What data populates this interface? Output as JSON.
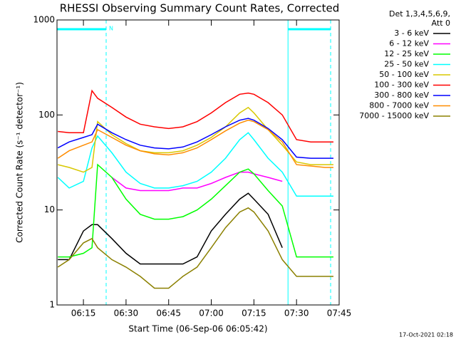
{
  "chart_data": {
    "type": "line",
    "title": "RHESSI Observing Summary Count Rates, Corrected",
    "x_label": "Start Time (06-Sep-06 06:05:42)",
    "y_label": "Corrected Count Rate (s⁻¹ detector⁻¹)",
    "legend_title": [
      "Det 1,3,4,5,6,9,",
      "Att 0"
    ],
    "legend": "right",
    "footer": "17-Oct-2021 02:18",
    "log_y": true,
    "xlim": [
      "06:05:42",
      "07:45"
    ],
    "xticks": [
      "06:15",
      "06:30",
      "06:45",
      "07:00",
      "07:15",
      "07:30",
      "07:45"
    ],
    "ylim": [
      1,
      1000
    ],
    "yticks": [
      1,
      10,
      100,
      1000
    ],
    "night_intervals": [
      {
        "start": "06:05:42",
        "end": "06:23"
      },
      {
        "start": "07:27",
        "end": "07:42"
      }
    ],
    "night_color": "#00ffff",
    "night_label": "N",
    "x": [
      "06:06",
      "06:10",
      "06:15",
      "06:18",
      "06:20",
      "06:25",
      "06:30",
      "06:35",
      "06:40",
      "06:45",
      "06:50",
      "06:55",
      "07:00",
      "07:05",
      "07:10",
      "07:13",
      "07:15",
      "07:20",
      "07:25",
      "07:30",
      "07:35",
      "07:40",
      "07:43"
    ],
    "series": [
      {
        "name": "3 - 6 keV",
        "color": "#000000",
        "values": [
          3,
          3,
          6,
          7,
          7,
          5,
          3.5,
          2.7,
          2.7,
          2.7,
          2.7,
          3.2,
          6,
          9,
          13,
          15,
          13,
          9,
          4,
          null,
          null,
          null,
          null
        ]
      },
      {
        "name": "6 - 12 keV",
        "color": "#ff00ff",
        "values": [
          null,
          null,
          null,
          null,
          null,
          22,
          17,
          16,
          16,
          16,
          17,
          17,
          19,
          22,
          25,
          25,
          24,
          22,
          20,
          null,
          null,
          null,
          null
        ]
      },
      {
        "name": "12 - 25 keV",
        "color": "#00ff00",
        "values": [
          3.2,
          3.2,
          3.5,
          4,
          30,
          22,
          13,
          9,
          8,
          8,
          8.5,
          10,
          13,
          18,
          25,
          27,
          24,
          16,
          11,
          3.2,
          3.2,
          3.2,
          3.2
        ]
      },
      {
        "name": "25 - 50 keV",
        "color": "#00ffff",
        "values": [
          22,
          17,
          20,
          45,
          60,
          40,
          25,
          19,
          17,
          17,
          18,
          20,
          25,
          35,
          55,
          65,
          55,
          35,
          25,
          14,
          14,
          14,
          14
        ]
      },
      {
        "name": "50 - 100 keV",
        "color": "#d8c800",
        "values": [
          30,
          28,
          25,
          28,
          85,
          62,
          50,
          42,
          40,
          40,
          42,
          48,
          58,
          75,
          105,
          120,
          105,
          70,
          48,
          32,
          30,
          30,
          30
        ]
      },
      {
        "name": "100 - 300 keV",
        "color": "#ff0000",
        "values": [
          67,
          65,
          65,
          180,
          150,
          120,
          95,
          80,
          75,
          72,
          75,
          85,
          105,
          135,
          165,
          170,
          165,
          135,
          100,
          55,
          52,
          52,
          52
        ]
      },
      {
        "name": "300 - 800 keV",
        "color": "#0000ff",
        "values": [
          45,
          52,
          58,
          62,
          80,
          65,
          55,
          48,
          45,
          44,
          46,
          52,
          62,
          75,
          88,
          92,
          88,
          72,
          55,
          36,
          35,
          35,
          35
        ]
      },
      {
        "name": "800 - 7000 keV",
        "color": "#ff8c00",
        "values": [
          35,
          42,
          48,
          52,
          70,
          58,
          48,
          42,
          39,
          38,
          40,
          45,
          55,
          68,
          82,
          88,
          85,
          70,
          52,
          30,
          29,
          28,
          28
        ]
      },
      {
        "name": "7000 - 15000 keV",
        "color": "#8b8000",
        "values": [
          2.5,
          3,
          4.5,
          5,
          4,
          3,
          2.5,
          2,
          1.5,
          1.5,
          2,
          2.5,
          4,
          6.5,
          9.5,
          10.5,
          9.5,
          6,
          3,
          2,
          2,
          2,
          2
        ]
      }
    ]
  }
}
